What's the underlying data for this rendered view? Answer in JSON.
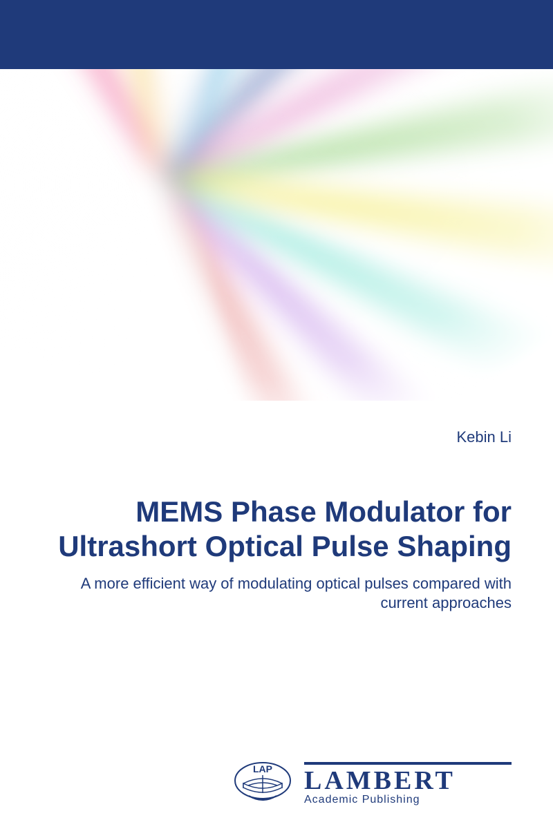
{
  "colors": {
    "band": "#1f3a7a",
    "text": "#1f3a7a",
    "white": "#ffffff"
  },
  "author": "Kebin Li",
  "title": "MEMS Phase Modulator for Ultrashort Optical Pulse Shaping",
  "subtitle": "A more efficient way of modulating optical pulses compared with current approaches",
  "publisher": {
    "name": "LAMBERT",
    "tagline": "Academic Publishing",
    "badge": "LAP"
  },
  "artwork": {
    "streaks": [
      {
        "color": "#ef4a8b",
        "opacity": 0.75
      },
      {
        "color": "#f6c94a",
        "opacity": 0.7
      },
      {
        "color": "#ffffff",
        "opacity": 0.95
      },
      {
        "color": "#3aa5d9",
        "opacity": 0.7
      },
      {
        "color": "#2d4aa0",
        "opacity": 0.65
      },
      {
        "color": "#e07ac0",
        "opacity": 0.65
      },
      {
        "color": "#6bc24a",
        "opacity": 0.6
      },
      {
        "color": "#f2e85a",
        "opacity": 0.7
      },
      {
        "color": "#4ad9c2",
        "opacity": 0.6
      },
      {
        "color": "#9a4ad9",
        "opacity": 0.55
      },
      {
        "color": "#d94a4a",
        "opacity": 0.6
      },
      {
        "color": "#ffffff",
        "opacity": 0.9
      }
    ]
  }
}
